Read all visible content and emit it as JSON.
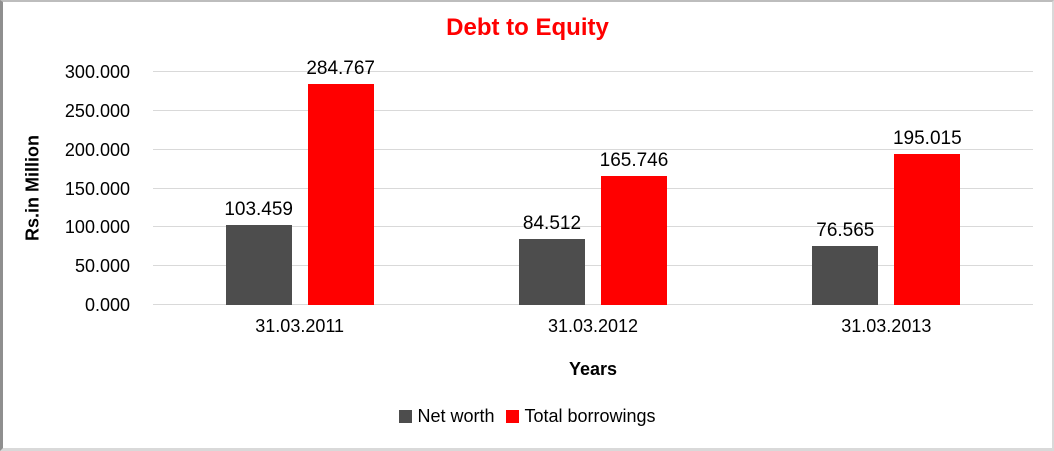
{
  "colors": {
    "title": "#FF0000",
    "net_worth": "#4D4D4D",
    "total_borrowings": "#FF0000",
    "gridline": "#D9D9D9",
    "text": "#000000"
  },
  "chart_data": {
    "type": "bar",
    "title": "Debt to Equity",
    "xlabel": "Years",
    "ylabel": "Rs.in Million",
    "categories": [
      "31.03.2011",
      "31.03.2012",
      "31.03.2013"
    ],
    "series": [
      {
        "name": "Net worth",
        "color": "#4D4D4D",
        "values": [
          103.459,
          84.512,
          76.565
        ],
        "labels": [
          "103.459",
          "84.512",
          "76.565"
        ]
      },
      {
        "name": "Total borrowings",
        "color": "#FF0000",
        "values": [
          284.767,
          165.746,
          195.015
        ],
        "labels": [
          "284.767",
          "165.746",
          "195.015"
        ]
      }
    ],
    "ylim": [
      0,
      300
    ],
    "yticks": [
      {
        "value": 0,
        "label": "0.000"
      },
      {
        "value": 50,
        "label": "50.000"
      },
      {
        "value": 100,
        "label": "100.000"
      },
      {
        "value": 150,
        "label": "150.000"
      },
      {
        "value": 200,
        "label": "200.000"
      },
      {
        "value": 250,
        "label": "250.000"
      },
      {
        "value": 300,
        "label": "300.000"
      }
    ],
    "grid": "horizontal",
    "legend_position": "bottom"
  }
}
